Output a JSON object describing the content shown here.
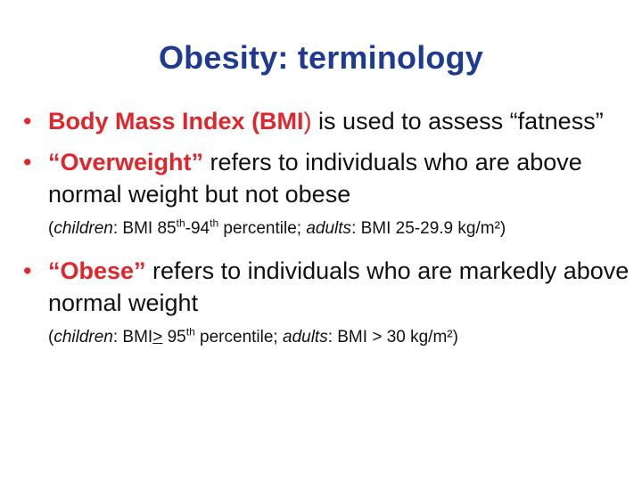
{
  "slide": {
    "title": "Obesity: terminology",
    "bullet_char": "•",
    "b1": {
      "strong": "Body Mass Index (BMI",
      "close": ")",
      "rest": " is used to assess “fatness”"
    },
    "b2": {
      "strong": "“Overweight”",
      "rest": " refers to individuals who are above normal weight but not obese"
    },
    "n2": {
      "open": "(",
      "children": "children",
      "a": ": BMI 85",
      "sup1": "th",
      "b": "-94",
      "sup2": "th",
      "c": " percentile; ",
      "adults": "adults",
      "d": ": BMI 25-29.9 kg/m²)"
    },
    "b3": {
      "strong": "“Obese”",
      "rest": " refers to individuals who are markedly above normal weight"
    },
    "n3": {
      "open": "(",
      "children": "children",
      "a": ": BMI",
      "ge": ">",
      "b": " 95",
      "sup1": "th",
      "c": " percentile; ",
      "adults": "adults",
      "d": ": BMI > 30 kg/m²)"
    },
    "colors": {
      "title": "#1f3a93",
      "accent": "#e1262b",
      "text": "#111111"
    }
  }
}
